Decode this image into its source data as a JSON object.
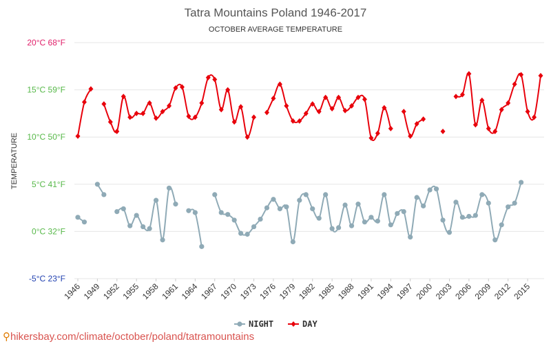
{
  "chart_data": {
    "type": "line",
    "title": "Tatra Mountains Poland 1946-2017",
    "subtitle": "OCTOBER AVERAGE TEMPERATURE",
    "ylabel": "TEMPERATURE",
    "xlabel": "",
    "ylim": [
      -5,
      20
    ],
    "xlim": [
      1946,
      2017
    ],
    "y_ticks": [
      {
        "value": 20,
        "label": "20°C 68°F",
        "color": "#e0206a"
      },
      {
        "value": 15,
        "label": "15°C 59°F",
        "color": "#56b848"
      },
      {
        "value": 10,
        "label": "10°C 50°F",
        "color": "#56b848"
      },
      {
        "value": 5,
        "label": "5°C 41°F",
        "color": "#56b848"
      },
      {
        "value": 0,
        "label": "0°C 32°F",
        "color": "#56b848"
      },
      {
        "value": -5,
        "label": "-5°C 23°F",
        "color": "#2040b0"
      }
    ],
    "x_ticks": [
      1946,
      1949,
      1952,
      1955,
      1958,
      1961,
      1964,
      1967,
      1970,
      1973,
      1976,
      1979,
      1982,
      1985,
      1988,
      1991,
      1994,
      1997,
      2000,
      2003,
      2006,
      2009,
      2012,
      2015
    ],
    "grid": true,
    "legend_position": "bottom",
    "x": [
      1946,
      1947,
      1948,
      1949,
      1950,
      1951,
      1952,
      1953,
      1954,
      1955,
      1956,
      1957,
      1958,
      1959,
      1960,
      1961,
      1962,
      1963,
      1964,
      1965,
      1966,
      1967,
      1968,
      1969,
      1970,
      1971,
      1972,
      1973,
      1974,
      1975,
      1976,
      1977,
      1978,
      1979,
      1980,
      1981,
      1982,
      1983,
      1984,
      1985,
      1986,
      1987,
      1988,
      1989,
      1990,
      1991,
      1992,
      1993,
      1994,
      1995,
      1996,
      1997,
      1998,
      1999,
      2000,
      2001,
      2002,
      2003,
      2004,
      2005,
      2006,
      2007,
      2008,
      2009,
      2010,
      2011,
      2012,
      2013,
      2014,
      2015,
      2016,
      2017
    ],
    "series": [
      {
        "name": "NIGHT",
        "color": "#8faab6",
        "marker": "circle",
        "values": [
          1.5,
          1.0,
          null,
          5.0,
          3.9,
          null,
          2.1,
          2.4,
          0.6,
          1.7,
          0.5,
          0.3,
          3.3,
          -0.9,
          4.6,
          2.9,
          null,
          2.2,
          2.0,
          -1.6,
          null,
          3.9,
          2.0,
          1.8,
          1.2,
          -0.2,
          -0.3,
          0.5,
          1.3,
          2.5,
          3.4,
          2.4,
          2.6,
          -1.1,
          3.3,
          3.9,
          2.4,
          1.4,
          3.9,
          0.3,
          0.4,
          2.8,
          0.6,
          2.9,
          1.0,
          1.5,
          1.1,
          3.9,
          0.7,
          1.9,
          2.1,
          -0.6,
          3.6,
          2.7,
          4.4,
          4.5,
          1.2,
          -0.1,
          3.1,
          1.5,
          1.6,
          1.7,
          3.9,
          3.0,
          -0.9,
          0.7,
          2.6,
          3.0,
          5.2,
          null,
          null,
          null
        ]
      },
      {
        "name": "DAY",
        "color": "#e8000b",
        "marker": "diamond",
        "values": [
          10.1,
          13.7,
          15.1,
          null,
          13.5,
          11.6,
          10.6,
          14.3,
          12.1,
          12.5,
          12.5,
          13.6,
          12.0,
          12.7,
          13.3,
          15.2,
          15.3,
          12.2,
          12.1,
          13.6,
          16.3,
          16.1,
          12.9,
          15.0,
          11.6,
          13.2,
          10.0,
          12.1,
          null,
          12.6,
          14.1,
          15.6,
          13.3,
          11.7,
          11.7,
          12.5,
          13.5,
          12.7,
          14.2,
          13.0,
          14.2,
          12.8,
          13.3,
          14.2,
          14.0,
          9.9,
          10.4,
          13.1,
          10.9,
          null,
          12.7,
          10.1,
          11.4,
          11.9,
          null,
          null,
          10.6,
          null,
          14.3,
          14.5,
          16.7,
          11.3,
          13.9,
          10.9,
          10.6,
          12.9,
          13.6,
          15.6,
          16.6,
          12.7,
          12.1,
          16.5
        ]
      }
    ]
  },
  "footer": {
    "pin_icon": "location-pin-icon",
    "url": "hikersbay.com/climate/october/poland/tatramountains"
  }
}
